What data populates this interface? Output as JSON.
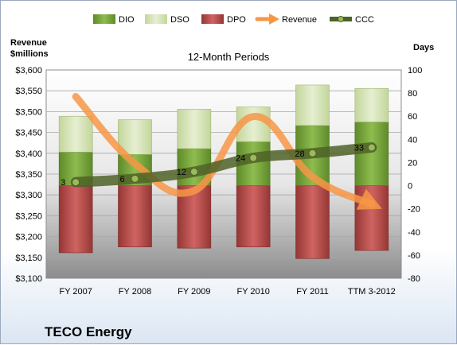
{
  "chart_data": {
    "type": "bar",
    "title": "12-Month Periods",
    "company": "TECO Energy",
    "left_axis_title": [
      "Revenue",
      "$millions"
    ],
    "right_axis_title": "Days",
    "categories": [
      "FY 2007",
      "FY 2008",
      "FY 2009",
      "FY 2010",
      "FY 2011",
      "TTM 3-2012"
    ],
    "left_ticks": [
      "$3,100",
      "$3,150",
      "$3,200",
      "$3,250",
      "$3,300",
      "$3,350",
      "$3,400",
      "$3,450",
      "$3,500",
      "$3,550",
      "$3,600"
    ],
    "right_ticks": [
      "-80",
      "-60",
      "-40",
      "-20",
      "0",
      "20",
      "40",
      "60",
      "80",
      "100"
    ],
    "left_ylim": [
      3100,
      3600
    ],
    "right_ylim": [
      -80,
      100
    ],
    "grid": true,
    "legend_position": "top",
    "legend": [
      "DIO",
      "DSO",
      "DPO",
      "Revenue",
      "CCC"
    ],
    "series": [
      {
        "name": "DIO",
        "axis": "right",
        "stacked": true,
        "values": [
          29,
          27,
          32,
          38,
          52,
          55
        ],
        "color": "#77a03a"
      },
      {
        "name": "DSO",
        "axis": "right",
        "stacked": true,
        "values": [
          31,
          30,
          34,
          30,
          35,
          29
        ],
        "color": "#d7e4bd"
      },
      {
        "name": "DPO",
        "axis": "right",
        "stacked": true,
        "values": [
          -58,
          -53,
          -54,
          -53,
          -63,
          -56
        ],
        "color": "#b94a48"
      },
      {
        "name": "Revenue",
        "axis": "left",
        "type": "line",
        "values": [
          3536,
          3375,
          3310,
          3488,
          3343,
          3278
        ],
        "color": "#f79646"
      },
      {
        "name": "CCC",
        "axis": "right",
        "type": "line",
        "values": [
          3,
          6,
          12,
          24,
          28,
          33
        ],
        "color": "#4f6228"
      }
    ],
    "data_labels": [
      "3",
      "6",
      "12",
      "24",
      "28",
      "33"
    ]
  }
}
